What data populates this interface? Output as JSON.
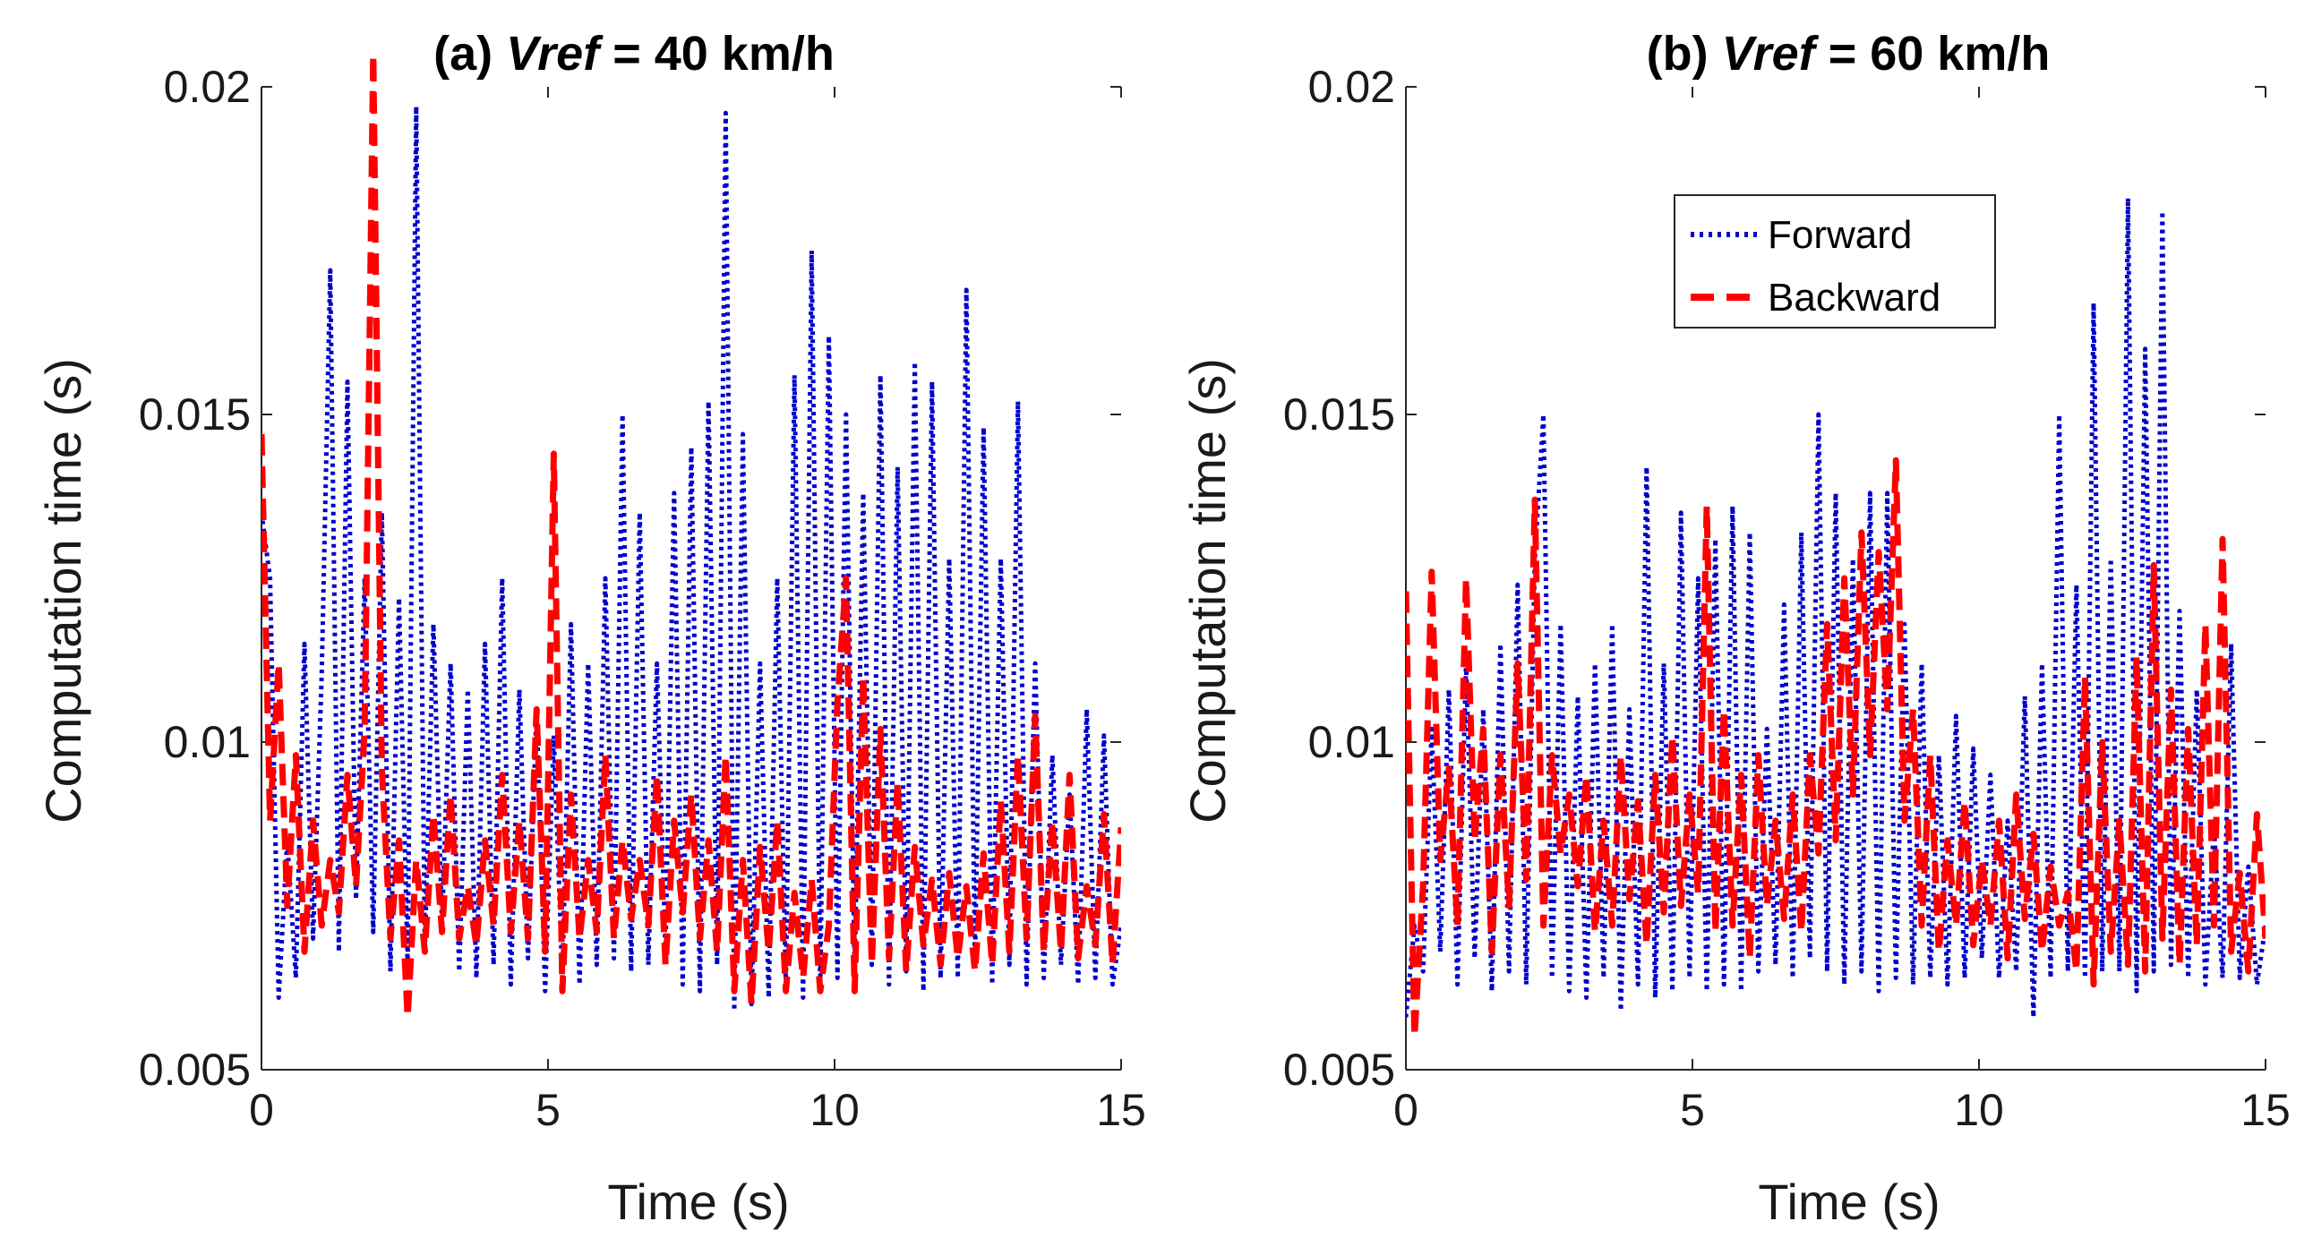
{
  "colors": {
    "forward": "#0000cc",
    "backward": "#ff0000",
    "axis": "#262626"
  },
  "chart_data": [
    {
      "type": "line",
      "title_prefix": "(a) ",
      "title_var": "Vref",
      "title_suffix": " = 40 km/h",
      "xlabel": "Time (s)",
      "ylabel": "Computation time (s)",
      "xlim": [
        0,
        15
      ],
      "ylim": [
        0.005,
        0.02
      ],
      "xticks": [
        0,
        5,
        10,
        15
      ],
      "xtick_labels": [
        "0",
        "5",
        "10",
        "15"
      ],
      "yticks": [
        0.005,
        0.01,
        0.015,
        0.02
      ],
      "ytick_labels": [
        "0.005",
        "0.01",
        "0.015",
        "0.02"
      ],
      "legend": null,
      "series": [
        {
          "name": "Forward",
          "style": "dotted",
          "color": "#0000cc",
          "x": [
            0,
            0.15,
            0.3,
            0.45,
            0.6,
            0.75,
            0.9,
            1.05,
            1.2,
            1.35,
            1.5,
            1.65,
            1.8,
            1.95,
            2.1,
            2.25,
            2.4,
            2.55,
            2.7,
            2.85,
            3.0,
            3.15,
            3.3,
            3.45,
            3.6,
            3.75,
            3.9,
            4.05,
            4.2,
            4.35,
            4.5,
            4.65,
            4.8,
            4.95,
            5.1,
            5.25,
            5.4,
            5.55,
            5.7,
            5.85,
            6.0,
            6.15,
            6.3,
            6.45,
            6.6,
            6.75,
            6.9,
            7.05,
            7.2,
            7.35,
            7.5,
            7.65,
            7.8,
            7.95,
            8.1,
            8.25,
            8.4,
            8.55,
            8.7,
            8.85,
            9.0,
            9.15,
            9.3,
            9.45,
            9.6,
            9.75,
            9.9,
            10.05,
            10.2,
            10.35,
            10.5,
            10.65,
            10.8,
            10.95,
            11.1,
            11.25,
            11.4,
            11.55,
            11.7,
            11.85,
            12.0,
            12.15,
            12.3,
            12.45,
            12.6,
            12.75,
            12.9,
            13.05,
            13.2,
            13.35,
            13.5,
            13.65,
            13.8,
            13.95,
            14.1,
            14.25,
            14.4,
            14.55,
            14.7,
            14.85,
            15.0
          ],
          "y": [
            0.0135,
            0.0125,
            0.0061,
            0.0085,
            0.0064,
            0.0115,
            0.007,
            0.011,
            0.0172,
            0.0068,
            0.0155,
            0.0076,
            0.0125,
            0.0071,
            0.0135,
            0.0065,
            0.0122,
            0.0066,
            0.0197,
            0.0068,
            0.0118,
            0.0072,
            0.0112,
            0.0065,
            0.0108,
            0.0064,
            0.0115,
            0.0066,
            0.0125,
            0.0063,
            0.0108,
            0.0067,
            0.0105,
            0.0062,
            0.0101,
            0.0064,
            0.0118,
            0.0063,
            0.0112,
            0.0066,
            0.0125,
            0.0067,
            0.015,
            0.0065,
            0.0135,
            0.0066,
            0.0112,
            0.0068,
            0.0138,
            0.0063,
            0.0145,
            0.0062,
            0.0152,
            0.0066,
            0.0196,
            0.0059,
            0.0147,
            0.006,
            0.0112,
            0.0061,
            0.0125,
            0.0063,
            0.0156,
            0.0061,
            0.0175,
            0.0063,
            0.0162,
            0.0064,
            0.015,
            0.0065,
            0.0138,
            0.0066,
            0.0156,
            0.0063,
            0.0142,
            0.0065,
            0.0158,
            0.0062,
            0.0155,
            0.0064,
            0.0128,
            0.0064,
            0.0169,
            0.0066,
            0.0148,
            0.0063,
            0.0128,
            0.0066,
            0.0152,
            0.0063,
            0.0112,
            0.0064,
            0.0098,
            0.0066,
            0.0092,
            0.0063,
            0.0105,
            0.0064,
            0.0101,
            0.0063,
            0.0072
          ]
        },
        {
          "name": "Backward",
          "style": "dashed",
          "color": "#ff0000",
          "x": [
            0,
            0.15,
            0.3,
            0.45,
            0.6,
            0.75,
            0.9,
            1.05,
            1.2,
            1.35,
            1.5,
            1.65,
            1.8,
            1.95,
            2.1,
            2.25,
            2.4,
            2.55,
            2.7,
            2.85,
            3.0,
            3.15,
            3.3,
            3.45,
            3.6,
            3.75,
            3.9,
            4.05,
            4.2,
            4.35,
            4.5,
            4.65,
            4.8,
            4.95,
            5.1,
            5.25,
            5.4,
            5.55,
            5.7,
            5.85,
            6.0,
            6.15,
            6.3,
            6.45,
            6.6,
            6.75,
            6.9,
            7.05,
            7.2,
            7.35,
            7.5,
            7.65,
            7.8,
            7.95,
            8.1,
            8.25,
            8.4,
            8.55,
            8.7,
            8.85,
            9.0,
            9.15,
            9.3,
            9.45,
            9.6,
            9.75,
            9.9,
            10.05,
            10.2,
            10.35,
            10.5,
            10.65,
            10.8,
            10.95,
            11.1,
            11.25,
            11.4,
            11.55,
            11.7,
            11.85,
            12.0,
            12.15,
            12.3,
            12.45,
            12.6,
            12.75,
            12.9,
            13.05,
            13.2,
            13.35,
            13.5,
            13.65,
            13.8,
            13.95,
            14.1,
            14.25,
            14.4,
            14.55,
            14.7,
            14.85,
            15.0
          ],
          "y": [
            0.0147,
            0.0088,
            0.0112,
            0.0075,
            0.0098,
            0.0068,
            0.0088,
            0.0072,
            0.0082,
            0.0074,
            0.0095,
            0.0078,
            0.0102,
            0.0205,
            0.0096,
            0.007,
            0.0085,
            0.0058,
            0.0082,
            0.0068,
            0.0089,
            0.0071,
            0.0092,
            0.007,
            0.0078,
            0.0069,
            0.0085,
            0.0072,
            0.0095,
            0.0071,
            0.0088,
            0.007,
            0.0105,
            0.0068,
            0.0144,
            0.0062,
            0.0092,
            0.007,
            0.0082,
            0.0071,
            0.0098,
            0.007,
            0.0085,
            0.0073,
            0.0082,
            0.0072,
            0.0095,
            0.0066,
            0.0088,
            0.0074,
            0.0092,
            0.007,
            0.0085,
            0.0068,
            0.0098,
            0.0062,
            0.0082,
            0.006,
            0.0084,
            0.0068,
            0.0088,
            0.0062,
            0.0077,
            0.0064,
            0.0079,
            0.0062,
            0.0072,
            0.0106,
            0.0125,
            0.0062,
            0.011,
            0.0066,
            0.0102,
            0.0067,
            0.0094,
            0.0065,
            0.0084,
            0.0069,
            0.0079,
            0.0066,
            0.008,
            0.0067,
            0.0078,
            0.0065,
            0.0083,
            0.0066,
            0.0091,
            0.0068,
            0.0098,
            0.007,
            0.0104,
            0.0068,
            0.0088,
            0.0068,
            0.0095,
            0.0067,
            0.0078,
            0.0069,
            0.0089,
            0.0066,
            0.0087
          ]
        }
      ]
    },
    {
      "type": "line",
      "title_prefix": "(b) ",
      "title_var": "Vref",
      "title_suffix": " = 60 km/h",
      "xlabel": "Time (s)",
      "ylabel": "Computation time (s)",
      "xlim": [
        0,
        15
      ],
      "ylim": [
        0.005,
        0.02
      ],
      "xticks": [
        0,
        5,
        10,
        15
      ],
      "xtick_labels": [
        "0",
        "5",
        "10",
        "15"
      ],
      "yticks": [
        0.005,
        0.01,
        0.015,
        0.02
      ],
      "ytick_labels": [
        "0.005",
        "0.01",
        "0.015",
        "0.02"
      ],
      "legend": {
        "entries": [
          "Forward",
          "Backward"
        ],
        "placement": "top-right"
      },
      "series": [
        {
          "name": "Forward",
          "style": "dotted",
          "color": "#0000cc",
          "x": [
            0,
            0.15,
            0.3,
            0.45,
            0.6,
            0.75,
            0.9,
            1.05,
            1.2,
            1.35,
            1.5,
            1.65,
            1.8,
            1.95,
            2.1,
            2.25,
            2.4,
            2.55,
            2.7,
            2.85,
            3.0,
            3.15,
            3.3,
            3.45,
            3.6,
            3.75,
            3.9,
            4.05,
            4.2,
            4.35,
            4.5,
            4.65,
            4.8,
            4.95,
            5.1,
            5.25,
            5.4,
            5.55,
            5.7,
            5.85,
            6.0,
            6.15,
            6.3,
            6.45,
            6.6,
            6.75,
            6.9,
            7.05,
            7.2,
            7.35,
            7.5,
            7.65,
            7.8,
            7.95,
            8.1,
            8.25,
            8.4,
            8.55,
            8.7,
            8.85,
            9.0,
            9.15,
            9.3,
            9.45,
            9.6,
            9.75,
            9.9,
            10.05,
            10.2,
            10.35,
            10.5,
            10.65,
            10.8,
            10.95,
            11.1,
            11.25,
            11.4,
            11.55,
            11.7,
            11.85,
            12.0,
            12.15,
            12.3,
            12.45,
            12.6,
            12.75,
            12.9,
            13.05,
            13.2,
            13.35,
            13.5,
            13.65,
            13.8,
            13.95,
            14.1,
            14.25,
            14.4,
            14.55,
            14.7,
            14.85,
            15.0
          ],
          "y": [
            0.0058,
            0.0072,
            0.0065,
            0.0102,
            0.0068,
            0.0108,
            0.0063,
            0.0112,
            0.0067,
            0.0105,
            0.0062,
            0.0115,
            0.0065,
            0.0124,
            0.0063,
            0.0128,
            0.015,
            0.0064,
            0.0118,
            0.0062,
            0.0107,
            0.0061,
            0.0112,
            0.0064,
            0.0118,
            0.0059,
            0.0105,
            0.0063,
            0.0142,
            0.0061,
            0.0112,
            0.0062,
            0.0135,
            0.0064,
            0.0125,
            0.0062,
            0.0131,
            0.0063,
            0.0136,
            0.0062,
            0.0132,
            0.0065,
            0.0102,
            0.0066,
            0.0121,
            0.0064,
            0.0132,
            0.0067,
            0.015,
            0.0065,
            0.0138,
            0.0063,
            0.0128,
            0.0065,
            0.0138,
            0.0062,
            0.0138,
            0.0064,
            0.0118,
            0.0063,
            0.0112,
            0.0064,
            0.0098,
            0.0063,
            0.0104,
            0.0064,
            0.0099,
            0.0067,
            0.0095,
            0.0064,
            0.0088,
            0.0065,
            0.0107,
            0.0058,
            0.0112,
            0.0064,
            0.015,
            0.0065,
            0.0124,
            0.0064,
            0.0167,
            0.0065,
            0.0128,
            0.0065,
            0.0183,
            0.0062,
            0.016,
            0.0065,
            0.0181,
            0.0066,
            0.012,
            0.0064,
            0.0108,
            0.0063,
            0.0087,
            0.0064,
            0.0115,
            0.0064,
            0.0081,
            0.0063,
            0.0072
          ]
        },
        {
          "name": "Backward",
          "style": "dashed",
          "color": "#ff0000",
          "x": [
            0,
            0.15,
            0.3,
            0.45,
            0.6,
            0.75,
            0.9,
            1.05,
            1.2,
            1.35,
            1.5,
            1.65,
            1.8,
            1.95,
            2.1,
            2.25,
            2.4,
            2.55,
            2.7,
            2.85,
            3.0,
            3.15,
            3.3,
            3.45,
            3.6,
            3.75,
            3.9,
            4.05,
            4.2,
            4.35,
            4.5,
            4.65,
            4.8,
            4.95,
            5.1,
            5.25,
            5.4,
            5.55,
            5.7,
            5.85,
            6.0,
            6.15,
            6.3,
            6.45,
            6.6,
            6.75,
            6.9,
            7.05,
            7.2,
            7.35,
            7.5,
            7.65,
            7.8,
            7.95,
            8.1,
            8.25,
            8.4,
            8.55,
            8.7,
            8.85,
            9.0,
            9.15,
            9.3,
            9.45,
            9.6,
            9.75,
            9.9,
            10.05,
            10.2,
            10.35,
            10.5,
            10.65,
            10.8,
            10.95,
            11.1,
            11.25,
            11.4,
            11.55,
            11.7,
            11.85,
            12.0,
            12.15,
            12.3,
            12.45,
            12.6,
            12.75,
            12.9,
            13.05,
            13.2,
            13.35,
            13.5,
            13.65,
            13.8,
            13.95,
            14.1,
            14.25,
            14.4,
            14.55,
            14.7,
            14.85,
            15.0
          ],
          "y": [
            0.0123,
            0.0055,
            0.0078,
            0.0126,
            0.0082,
            0.0096,
            0.0072,
            0.0125,
            0.0085,
            0.0102,
            0.0068,
            0.0098,
            0.0075,
            0.0112,
            0.0079,
            0.0137,
            0.0072,
            0.0098,
            0.0083,
            0.0092,
            0.0078,
            0.0095,
            0.0071,
            0.0088,
            0.0072,
            0.0098,
            0.0076,
            0.0091,
            0.0069,
            0.0095,
            0.0074,
            0.0101,
            0.0075,
            0.0092,
            0.0077,
            0.0136,
            0.0071,
            0.0105,
            0.0072,
            0.0095,
            0.0067,
            0.0098,
            0.0075,
            0.0088,
            0.0073,
            0.0092,
            0.0071,
            0.0098,
            0.0083,
            0.0118,
            0.0085,
            0.0125,
            0.0092,
            0.0132,
            0.0098,
            0.0129,
            0.0105,
            0.0143,
            0.0088,
            0.0105,
            0.0072,
            0.0098,
            0.0068,
            0.0085,
            0.0072,
            0.0091,
            0.0069,
            0.0082,
            0.0072,
            0.0088,
            0.0067,
            0.0092,
            0.0073,
            0.0086,
            0.0068,
            0.0081,
            0.0072,
            0.0077,
            0.0065,
            0.011,
            0.0063,
            0.01,
            0.0068,
            0.0088,
            0.0066,
            0.0113,
            0.0065,
            0.0127,
            0.007,
            0.0108,
            0.0066,
            0.0102,
            0.0069,
            0.0118,
            0.0072,
            0.0131,
            0.0068,
            0.008,
            0.0065,
            0.0089,
            0.007
          ]
        }
      ]
    }
  ]
}
